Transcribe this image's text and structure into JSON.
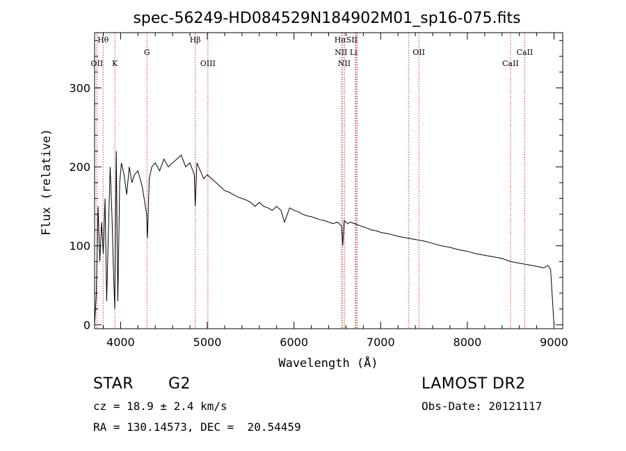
{
  "chart_data": {
    "type": "line",
    "title": "spec-56249-HD084529N184902M01_sp16-075.fits",
    "xlabel": "Wavelength (Å)",
    "ylabel": "Flux (relative)",
    "xlim": [
      3700,
      9100
    ],
    "ylim": [
      -5,
      370
    ],
    "x_ticks": [
      4000,
      5000,
      6000,
      7000,
      8000,
      9000
    ],
    "y_ticks": [
      0,
      100,
      200,
      300
    ],
    "grid": false,
    "series": [
      {
        "x": [
          3700,
          3720,
          3740,
          3760,
          3780,
          3800,
          3820,
          3840,
          3860,
          3880,
          3900,
          3920,
          3933,
          3950,
          3968,
          3990,
          4010,
          4040,
          4070,
          4100,
          4130,
          4160,
          4200,
          4250,
          4300,
          4310,
          4330,
          4360,
          4400,
          4450,
          4500,
          4550,
          4600,
          4650,
          4700,
          4750,
          4800,
          4850,
          4861,
          4880,
          4920,
          4960,
          5000,
          5050,
          5100,
          5150,
          5200,
          5250,
          5300,
          5350,
          5400,
          5450,
          5500,
          5550,
          5600,
          5650,
          5700,
          5750,
          5800,
          5850,
          5890,
          5950,
          6000,
          6050,
          6100,
          6150,
          6200,
          6250,
          6300,
          6350,
          6400,
          6450,
          6500,
          6550,
          6563,
          6580,
          6620,
          6650,
          6700,
          6750,
          6800,
          6850,
          6900,
          6950,
          7000,
          7100,
          7200,
          7300,
          7400,
          7500,
          7600,
          7700,
          7800,
          7900,
          8000,
          8100,
          8200,
          8300,
          8400,
          8500,
          8600,
          8700,
          8800,
          8880,
          8930,
          8960,
          9000
        ],
        "y": [
          0,
          40,
          150,
          80,
          130,
          90,
          160,
          30,
          120,
          200,
          140,
          60,
          20,
          220,
          30,
          180,
          205,
          190,
          165,
          200,
          180,
          190,
          195,
          175,
          140,
          110,
          185,
          200,
          205,
          195,
          210,
          200,
          205,
          210,
          215,
          200,
          205,
          190,
          150,
          205,
          195,
          185,
          190,
          185,
          180,
          175,
          170,
          168,
          165,
          162,
          160,
          158,
          155,
          150,
          155,
          150,
          148,
          145,
          150,
          145,
          130,
          148,
          145,
          143,
          140,
          138,
          137,
          135,
          133,
          132,
          130,
          128,
          130,
          125,
          100,
          132,
          128,
          130,
          128,
          126,
          124,
          122,
          120,
          119,
          117,
          115,
          112,
          110,
          108,
          106,
          103,
          100,
          98,
          95,
          93,
          90,
          88,
          86,
          84,
          80,
          78,
          76,
          74,
          72,
          75,
          70,
          0
        ]
      }
    ],
    "lines": [
      {
        "x": 3727,
        "top": "OII"
      },
      {
        "x": 3798,
        "top": "Hθ"
      },
      {
        "x": 3934,
        "top": "K"
      },
      {
        "x": 4304,
        "top": "G"
      },
      {
        "x": 4861,
        "top": "Hβ"
      },
      {
        "x": 5007,
        "top": "OIII"
      },
      {
        "x": 6548,
        "top": "NII"
      },
      {
        "x": 6563,
        "top": "Hα"
      },
      {
        "x": 6584,
        "top": "NII"
      },
      {
        "x": 6708,
        "top": "Li"
      },
      {
        "x": 6717,
        "top": "SII"
      },
      {
        "x": 6731,
        "top": "SII"
      },
      {
        "x": 7325,
        "top": ""
      },
      {
        "x": 7440,
        "top": "OII"
      },
      {
        "x": 8498,
        "top": "CaII"
      },
      {
        "x": 8662,
        "top": "CaII"
      }
    ],
    "line_labels": [
      {
        "text": "Hθ",
        "x": 3798,
        "row": 0
      },
      {
        "text": "Hβ",
        "x": 4861,
        "row": 0
      },
      {
        "text": "HαSII",
        "x": 6600,
        "row": 0
      },
      {
        "text": "G",
        "x": 4304,
        "row": 1
      },
      {
        "text": "NII Li",
        "x": 6600,
        "row": 1
      },
      {
        "text": "OII",
        "x": 7440,
        "row": 1
      },
      {
        "text": "CaII",
        "x": 8662,
        "row": 1
      },
      {
        "text": "OII",
        "x": 3727,
        "row": 2
      },
      {
        "text": "K",
        "x": 3934,
        "row": 2
      },
      {
        "text": "OIII",
        "x": 5007,
        "row": 2
      },
      {
        "text": "NII",
        "x": 6580,
        "row": 2
      },
      {
        "text": "CaII",
        "x": 8498,
        "row": 2
      }
    ]
  },
  "info": {
    "object_type": "STAR",
    "subclass": "G2",
    "survey": "LAMOST DR2",
    "redshift": "cz = 18.9 ± 2.4 km/s",
    "obs_date": "Obs-Date: 20121117",
    "coords": "RA = 130.14573, DEC =  20.54459"
  },
  "colors": {
    "spectrum": "#000000",
    "line_markers": "#cc3333",
    "axes": "#000000",
    "background": "#ffffff"
  }
}
